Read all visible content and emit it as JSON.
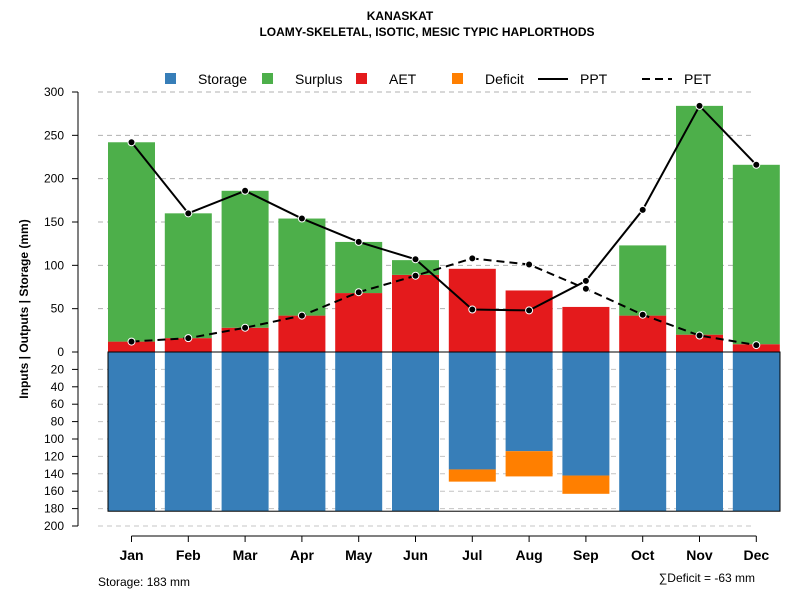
{
  "chart_data": {
    "type": "bar",
    "title": "KANASKAT",
    "subtitle": "LOAMY-SKELETAL, ISOTIC, MESIC TYPIC HAPLORTHODS",
    "ylabel": "Inputs | Outputs | Storage    (mm)",
    "categories": [
      "Jan",
      "Feb",
      "Mar",
      "Apr",
      "May",
      "Jun",
      "Jul",
      "Aug",
      "Sep",
      "Oct",
      "Nov",
      "Dec"
    ],
    "upper_ticks": [
      "300",
      "250",
      "200",
      "150",
      "100",
      "50",
      "0"
    ],
    "lower_ticks": [
      "20",
      "40",
      "60",
      "80",
      "100",
      "120",
      "140",
      "160",
      "180",
      "200"
    ],
    "ylim_upper": [
      0,
      300
    ],
    "ylim_lower": [
      0,
      200
    ],
    "series": [
      {
        "name": "Storage",
        "color": "#377EB8",
        "values": [
          183,
          183,
          183,
          183,
          183,
          183,
          135,
          114,
          142,
          183,
          183,
          183
        ]
      },
      {
        "name": "Surplus",
        "color": "#4DAF4A",
        "values": [
          230,
          144,
          158,
          112,
          59,
          17,
          0,
          0,
          0,
          81,
          264,
          207
        ]
      },
      {
        "name": "AET",
        "color": "#E41A1C",
        "values": [
          12,
          16,
          28,
          42,
          68,
          89,
          96,
          71,
          52,
          42,
          20,
          9
        ]
      },
      {
        "name": "Deficit",
        "color": "#FF7F00",
        "values": [
          0,
          0,
          0,
          0,
          0,
          0,
          -14,
          -29,
          -21,
          0,
          0,
          0
        ]
      },
      {
        "name": "PPT",
        "color": "#000000",
        "values": [
          242,
          160,
          186,
          154,
          127,
          107,
          49,
          48,
          82,
          164,
          284,
          216
        ]
      },
      {
        "name": "PET",
        "color": "#000000",
        "values": [
          12,
          16,
          28,
          42,
          69,
          88,
          108,
          101,
          73,
          43,
          19,
          8
        ]
      }
    ],
    "legend": [
      "Storage",
      "Surplus",
      "AET",
      "Deficit",
      "PPT",
      "PET"
    ],
    "legend_position": "top",
    "grid": true,
    "annotations": {
      "storage": "Storage: 183 mm",
      "deficit": "∑Deficit = -63 mm"
    }
  }
}
